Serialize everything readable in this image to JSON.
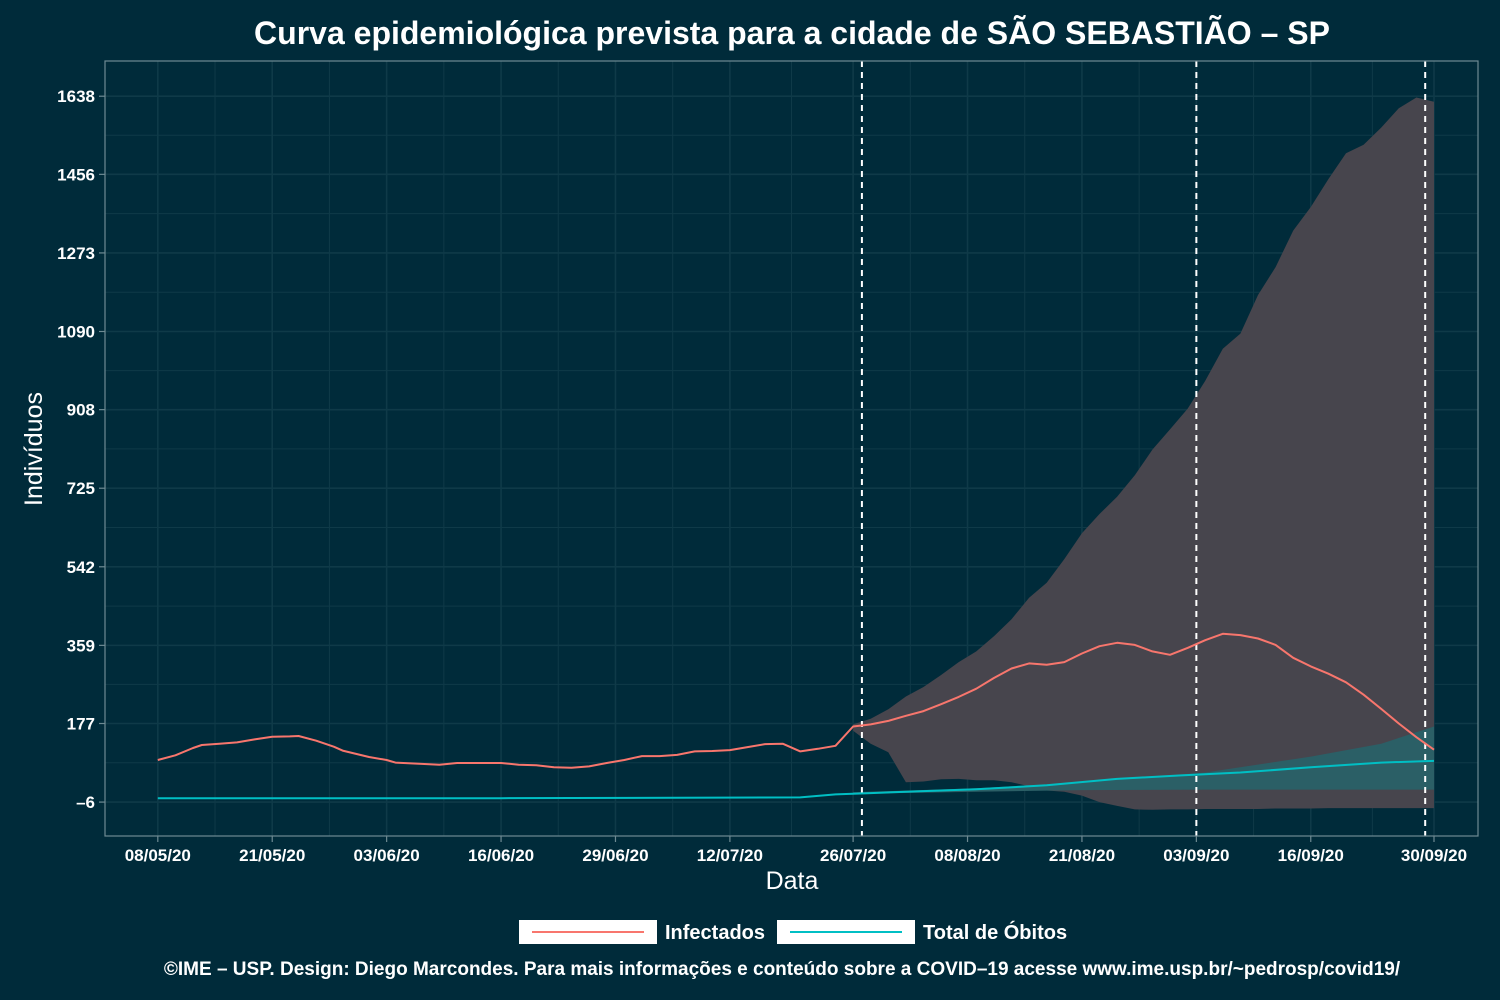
{
  "colors": {
    "background": "#002b3a",
    "panel_border": "#6e8a93",
    "grid": "#0f3a48",
    "infectados": "#f8766d",
    "obitos": "#00bfc4",
    "band_infectados": "#47454d",
    "band_obitos": "#2b5f66",
    "vline": "#ffffff"
  },
  "footer": "©IME – USP. Design: Diego Marcondes. Para mais informações e conteúdo sobre a COVID–19 acesse www.ime.usp.br/~pedrosp/covid19/",
  "chart_data": {
    "type": "line",
    "title": "Curva epidemiológica prevista para a cidade de SÃO SEBASTIÃO – SP",
    "xlabel": "Data",
    "ylabel": "Indivíduos",
    "x_start": "2020-05-08",
    "x_end": "2020-09-30",
    "xlim": [
      "2020-05-02",
      "2020-10-05"
    ],
    "ylim": [
      -85,
      1720
    ],
    "y_ticks": [
      -6,
      177,
      359,
      542,
      725,
      908,
      1090,
      1273,
      1456,
      1638
    ],
    "y_tick_labels": [
      "–6",
      "177",
      "359",
      "542",
      "725",
      "908",
      "1090",
      "1273",
      "1456",
      "1638"
    ],
    "x_ticks": [
      "2020-05-08",
      "2020-05-21",
      "2020-06-03",
      "2020-06-16",
      "2020-06-29",
      "2020-07-12",
      "2020-07-26",
      "2020-08-08",
      "2020-08-21",
      "2020-09-03",
      "2020-09-16",
      "2020-09-30"
    ],
    "x_tick_labels": [
      "08/05/20",
      "21/05/20",
      "03/06/20",
      "16/06/20",
      "29/06/20",
      "12/07/20",
      "26/07/20",
      "08/08/20",
      "21/08/20",
      "03/09/20",
      "16/09/20",
      "30/09/20"
    ],
    "vlines": [
      "2020-07-27",
      "2020-09-03",
      "2020-09-29"
    ],
    "legend": {
      "position": "bottom",
      "entries": [
        "Infectados",
        "Total de Óbitos"
      ]
    },
    "grid": true,
    "series": [
      {
        "name": "Infectados",
        "points": [
          [
            "2020-05-08",
            92
          ],
          [
            "2020-05-10",
            103
          ],
          [
            "2020-05-12",
            120
          ],
          [
            "2020-05-13",
            127
          ],
          [
            "2020-05-15",
            130
          ],
          [
            "2020-05-17",
            133
          ],
          [
            "2020-05-19",
            140
          ],
          [
            "2020-05-21",
            146
          ],
          [
            "2020-05-23",
            147
          ],
          [
            "2020-05-24",
            148
          ],
          [
            "2020-05-26",
            137
          ],
          [
            "2020-05-28",
            123
          ],
          [
            "2020-05-29",
            114
          ],
          [
            "2020-06-01",
            99
          ],
          [
            "2020-06-03",
            92
          ],
          [
            "2020-06-04",
            86
          ],
          [
            "2020-06-07",
            83
          ],
          [
            "2020-06-09",
            81
          ],
          [
            "2020-06-11",
            85
          ],
          [
            "2020-06-13",
            85
          ],
          [
            "2020-06-16",
            85
          ],
          [
            "2020-06-18",
            81
          ],
          [
            "2020-06-20",
            80
          ],
          [
            "2020-06-22",
            75
          ],
          [
            "2020-06-24",
            74
          ],
          [
            "2020-06-26",
            77
          ],
          [
            "2020-06-28",
            85
          ],
          [
            "2020-06-30",
            92
          ],
          [
            "2020-07-02",
            101
          ],
          [
            "2020-07-04",
            101
          ],
          [
            "2020-07-06",
            104
          ],
          [
            "2020-07-08",
            112
          ],
          [
            "2020-07-10",
            113
          ],
          [
            "2020-07-12",
            115
          ],
          [
            "2020-07-14",
            122
          ],
          [
            "2020-07-16",
            129
          ],
          [
            "2020-07-18",
            130
          ],
          [
            "2020-07-20",
            112
          ],
          [
            "2020-07-22",
            118
          ],
          [
            "2020-07-24",
            125
          ],
          [
            "2020-07-26",
            170
          ],
          [
            "2020-07-28",
            175
          ],
          [
            "2020-07-30",
            183
          ],
          [
            "2020-08-01",
            195
          ],
          [
            "2020-08-03",
            206
          ],
          [
            "2020-08-05",
            222
          ],
          [
            "2020-08-07",
            239
          ],
          [
            "2020-08-09",
            258
          ],
          [
            "2020-08-11",
            283
          ],
          [
            "2020-08-13",
            305
          ],
          [
            "2020-08-15",
            317
          ],
          [
            "2020-08-17",
            314
          ],
          [
            "2020-08-19",
            320
          ],
          [
            "2020-08-21",
            340
          ],
          [
            "2020-08-23",
            357
          ],
          [
            "2020-08-25",
            365
          ],
          [
            "2020-08-27",
            360
          ],
          [
            "2020-08-29",
            345
          ],
          [
            "2020-08-31",
            337
          ],
          [
            "2020-09-02",
            353
          ],
          [
            "2020-09-04",
            371
          ],
          [
            "2020-09-06",
            386
          ],
          [
            "2020-09-08",
            383
          ],
          [
            "2020-09-10",
            375
          ],
          [
            "2020-09-12",
            360
          ],
          [
            "2020-09-14",
            330
          ],
          [
            "2020-09-16",
            310
          ],
          [
            "2020-09-18",
            293
          ],
          [
            "2020-09-20",
            273
          ],
          [
            "2020-09-22",
            244
          ],
          [
            "2020-09-24",
            211
          ],
          [
            "2020-09-26",
            177
          ],
          [
            "2020-09-28",
            145
          ],
          [
            "2020-09-30",
            116
          ]
        ]
      },
      {
        "name": "Total de Óbitos",
        "points": [
          [
            "2020-05-08",
            3
          ],
          [
            "2020-06-16",
            3
          ],
          [
            "2020-07-20",
            5
          ],
          [
            "2020-07-24",
            12
          ],
          [
            "2020-07-28",
            15
          ],
          [
            "2020-08-01",
            18
          ],
          [
            "2020-08-09",
            24
          ],
          [
            "2020-08-17",
            33
          ],
          [
            "2020-08-25",
            48
          ],
          [
            "2020-09-01",
            56
          ],
          [
            "2020-09-08",
            63
          ],
          [
            "2020-09-16",
            75
          ],
          [
            "2020-09-24",
            86
          ],
          [
            "2020-09-30",
            90
          ]
        ]
      }
    ],
    "bands": [
      {
        "series": "Infectados",
        "x": [
          "2020-07-26",
          "2020-07-28",
          "2020-07-30",
          "2020-08-01",
          "2020-08-03",
          "2020-08-05",
          "2020-08-07",
          "2020-08-09",
          "2020-08-11",
          "2020-08-13",
          "2020-08-15",
          "2020-08-17",
          "2020-08-19",
          "2020-08-21",
          "2020-08-23",
          "2020-08-25",
          "2020-08-27",
          "2020-08-29",
          "2020-08-31",
          "2020-09-02",
          "2020-09-04",
          "2020-09-06",
          "2020-09-08",
          "2020-09-10",
          "2020-09-12",
          "2020-09-14",
          "2020-09-16",
          "2020-09-18",
          "2020-09-20",
          "2020-09-22",
          "2020-09-24",
          "2020-09-26",
          "2020-09-28",
          "2020-09-30"
        ],
        "upper": [
          175,
          188,
          210,
          240,
          262,
          290,
          320,
          345,
          380,
          420,
          470,
          505,
          560,
          620,
          665,
          705,
          755,
          815,
          862,
          910,
          975,
          1050,
          1085,
          1175,
          1240,
          1325,
          1380,
          1445,
          1505,
          1525,
          1565,
          1610,
          1635,
          1625
        ],
        "lower": [
          160,
          130,
          110,
          40,
          42,
          47,
          48,
          45,
          45,
          40,
          31,
          21,
          18,
          9,
          -6,
          -15,
          -23,
          -24,
          -23,
          -23,
          -22,
          -22,
          -22,
          -22,
          -21,
          -21,
          -21,
          -20,
          -20,
          -20,
          -20,
          -20,
          -20,
          -20
        ]
      },
      {
        "series": "Total de Óbitos",
        "x": [
          "2020-07-26",
          "2020-08-09",
          "2020-08-21",
          "2020-09-04",
          "2020-09-16",
          "2020-09-24",
          "2020-09-30"
        ],
        "upper": [
          17,
          26,
          40,
          63,
          100,
          130,
          170
        ],
        "lower": [
          13,
          18,
          22,
          23,
          23,
          23,
          23
        ]
      }
    ]
  }
}
